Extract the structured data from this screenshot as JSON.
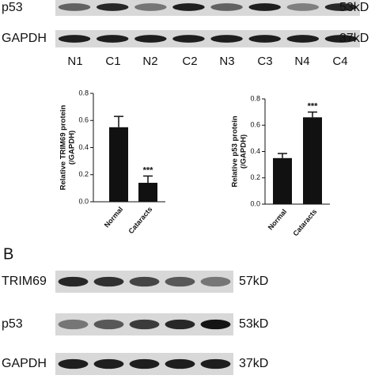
{
  "panel_a": {
    "rows": [
      {
        "label": "p53",
        "size": "53kD"
      },
      {
        "label": "GAPDH",
        "size": "37kD"
      }
    ],
    "lanes": [
      "N1",
      "C1",
      "N2",
      "C2",
      "N3",
      "C3",
      "N4",
      "C4"
    ]
  },
  "chart_data": [
    {
      "type": "bar",
      "ylabel": [
        "Relative TRIM69 protein",
        "(/GAPDH)"
      ],
      "categories": [
        "Normal",
        "Cataracts"
      ],
      "values": [
        0.55,
        0.14
      ],
      "errors": [
        0.08,
        0.05
      ],
      "annotation": "***",
      "color": "#111111",
      "ylim": [
        0,
        0.8
      ],
      "yticks": [
        {
          "value": 0,
          "label": "0.0"
        },
        0.2,
        0.4,
        0.6,
        0.8
      ]
    },
    {
      "type": "bar",
      "ylabel": [
        "Relative p53 protein",
        "(/GAPDH)"
      ],
      "categories": [
        "Normal",
        "Cataracts"
      ],
      "values": [
        0.35,
        0.66
      ],
      "errors": [
        0.035,
        0.04
      ],
      "annotation": "***",
      "color": "#111111",
      "ylim": [
        0,
        0.8
      ],
      "yticks": [
        {
          "value": 0,
          "label": "0.0"
        },
        0.2,
        0.4,
        0.6,
        0.8
      ]
    }
  ],
  "panel_b": {
    "label": "B",
    "rows": [
      {
        "label": "TRIM69",
        "size": "57kD"
      },
      {
        "label": "p53",
        "size": "53kD"
      },
      {
        "label": "GAPDH",
        "size": "37kD"
      }
    ]
  }
}
